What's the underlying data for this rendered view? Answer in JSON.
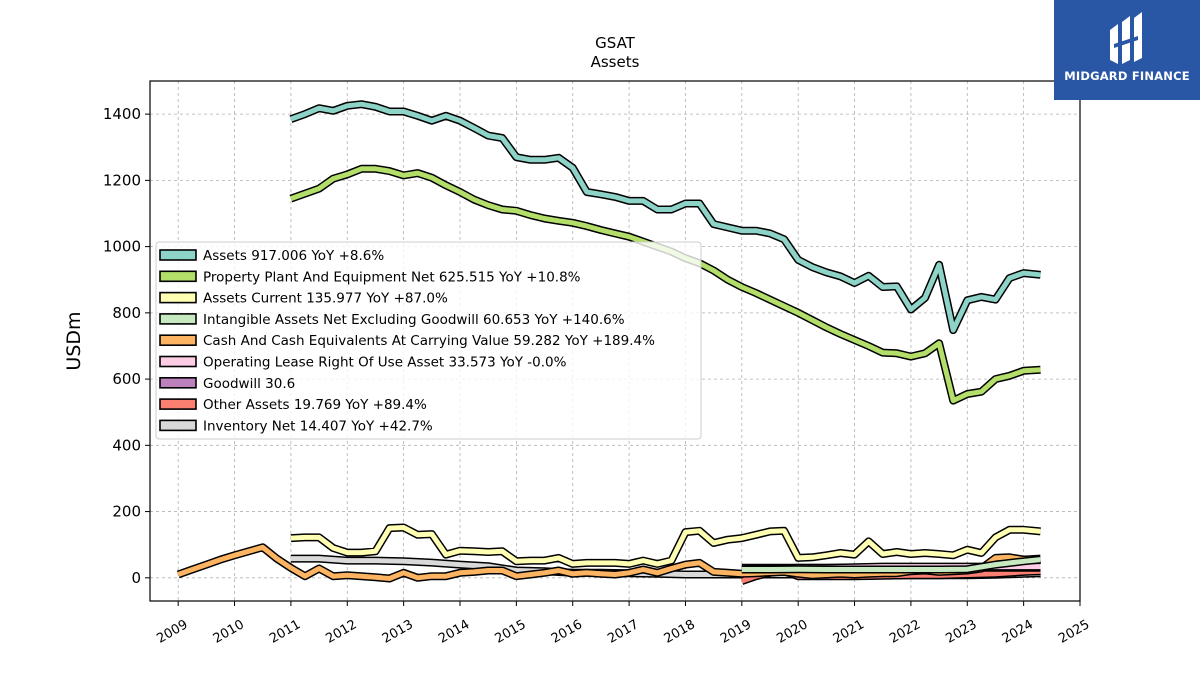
{
  "brand": {
    "name": "MIDGARD FINANCE",
    "logo_icon": "midgard-logo-icon"
  },
  "chart_data": {
    "type": "line",
    "title": "GSAT",
    "subtitle": "Assets",
    "xlabel": "",
    "ylabel": "USDm",
    "xlim": [
      2008.5,
      2025.0
    ],
    "ylim": [
      -70,
      1500
    ],
    "yticks": [
      0,
      200,
      400,
      600,
      800,
      1000,
      1200,
      1400
    ],
    "xticks": [
      2009,
      2010,
      2011,
      2012,
      2013,
      2014,
      2015,
      2016,
      2017,
      2018,
      2019,
      2020,
      2021,
      2022,
      2023,
      2024,
      2025
    ],
    "grid": true,
    "legend_position": "center-left",
    "series": [
      {
        "name": "Assets",
        "legend": "Assets  917.006 YoY +8.6%",
        "color": "#8dd3c7",
        "x": [
          2011.0,
          2011.25,
          2011.5,
          2011.75,
          2012.0,
          2012.25,
          2012.5,
          2012.75,
          2013.0,
          2013.25,
          2013.5,
          2013.75,
          2014.0,
          2014.25,
          2014.5,
          2014.75,
          2015.0,
          2015.25,
          2015.5,
          2015.75,
          2016.0,
          2016.25,
          2016.5,
          2016.75,
          2017.0,
          2017.25,
          2017.5,
          2017.75,
          2018.0,
          2018.25,
          2018.5,
          2018.75,
          2019.0,
          2019.25,
          2019.5,
          2019.75,
          2020.0,
          2020.25,
          2020.5,
          2020.75,
          2021.0,
          2021.25,
          2021.5,
          2021.75,
          2022.0,
          2022.25,
          2022.5,
          2022.75,
          2023.0,
          2023.25,
          2023.5,
          2023.75,
          2024.0,
          2024.3
        ],
        "values": [
          1385,
          1400,
          1418,
          1410,
          1425,
          1430,
          1422,
          1408,
          1408,
          1395,
          1380,
          1395,
          1380,
          1358,
          1335,
          1328,
          1270,
          1262,
          1262,
          1268,
          1238,
          1165,
          1158,
          1150,
          1138,
          1138,
          1112,
          1112,
          1130,
          1130,
          1068,
          1058,
          1048,
          1048,
          1040,
          1022,
          960,
          938,
          922,
          910,
          890,
          912,
          878,
          880,
          810,
          845,
          945,
          748,
          838,
          848,
          840,
          905,
          920,
          915
        ]
      },
      {
        "name": "Property Plant And Equipment Net",
        "legend": "Property Plant And Equipment Net  625.515 YoY +10.8%",
        "color": "#b3de69",
        "x": [
          2011.0,
          2011.25,
          2011.5,
          2011.75,
          2012.0,
          2012.25,
          2012.5,
          2012.75,
          2013.0,
          2013.25,
          2013.5,
          2013.75,
          2014.0,
          2014.25,
          2014.5,
          2014.75,
          2015.0,
          2015.25,
          2015.5,
          2015.75,
          2016.0,
          2016.25,
          2016.5,
          2016.75,
          2017.0,
          2017.25,
          2017.5,
          2017.75,
          2018.0,
          2018.25,
          2018.5,
          2018.75,
          2019.0,
          2019.25,
          2019.5,
          2019.75,
          2020.0,
          2020.25,
          2020.5,
          2020.75,
          2021.0,
          2021.25,
          2021.5,
          2021.75,
          2022.0,
          2022.25,
          2022.5,
          2022.75,
          2023.0,
          2023.25,
          2023.5,
          2023.75,
          2024.0,
          2024.3
        ],
        "values": [
          1145,
          1160,
          1175,
          1205,
          1218,
          1235,
          1235,
          1228,
          1215,
          1222,
          1208,
          1185,
          1165,
          1142,
          1125,
          1112,
          1108,
          1095,
          1085,
          1078,
          1072,
          1062,
          1050,
          1040,
          1030,
          1015,
          1000,
          985,
          965,
          950,
          928,
          900,
          878,
          860,
          840,
          820,
          800,
          778,
          756,
          736,
          718,
          700,
          680,
          678,
          668,
          678,
          708,
          535,
          555,
          562,
          600,
          610,
          625,
          628
        ]
      },
      {
        "name": "Assets Current",
        "legend": "Assets Current  135.977 YoY +87.0%",
        "color": "#ffffb3",
        "x": [
          2011.0,
          2011.25,
          2011.5,
          2011.75,
          2012.0,
          2012.25,
          2012.5,
          2012.75,
          2013.0,
          2013.25,
          2013.5,
          2013.75,
          2014.0,
          2014.25,
          2014.5,
          2014.75,
          2015.0,
          2015.25,
          2015.5,
          2015.75,
          2016.0,
          2016.25,
          2016.5,
          2016.75,
          2017.0,
          2017.25,
          2017.5,
          2017.75,
          2018.0,
          2018.25,
          2018.5,
          2018.75,
          2019.0,
          2019.25,
          2019.5,
          2019.75,
          2020.0,
          2020.25,
          2020.5,
          2020.75,
          2021.0,
          2021.25,
          2021.5,
          2021.75,
          2022.0,
          2022.25,
          2022.5,
          2022.75,
          2023.0,
          2023.25,
          2023.5,
          2023.75,
          2024.0,
          2024.3
        ],
        "values": [
          120,
          122,
          122,
          90,
          76,
          76,
          80,
          150,
          152,
          130,
          132,
          70,
          82,
          80,
          78,
          80,
          50,
          52,
          52,
          60,
          42,
          45,
          45,
          45,
          42,
          52,
          42,
          52,
          138,
          142,
          105,
          115,
          120,
          130,
          140,
          142,
          60,
          62,
          68,
          75,
          70,
          110,
          72,
          78,
          72,
          75,
          72,
          68,
          85,
          75,
          122,
          145,
          145,
          140
        ]
      },
      {
        "name": "Intangible Assets Net Excluding Goodwill",
        "legend": "Intangible Assets Net Excluding Goodwill  60.653 YoY +140.6%",
        "color": "#c7e9c0",
        "x": [
          2019.0,
          2019.5,
          2020.0,
          2020.5,
          2021.0,
          2021.5,
          2022.0,
          2022.5,
          2023.0,
          2023.5,
          2024.0,
          2024.3
        ],
        "values": [
          25,
          25,
          26,
          25,
          25,
          25,
          25,
          25,
          26,
          40,
          50,
          55
        ]
      },
      {
        "name": "Cash And Cash Equivalents At Carrying Value",
        "legend": "Cash And Cash Equivalents At Carrying Value  59.282 YoY +189.4%",
        "color": "#fdb462",
        "x": [
          2009.0,
          2009.25,
          2009.5,
          2009.75,
          2010.0,
          2010.25,
          2010.5,
          2010.75,
          2011.0,
          2011.25,
          2011.5,
          2011.75,
          2012.0,
          2012.25,
          2012.5,
          2012.75,
          2013.0,
          2013.25,
          2013.5,
          2013.75,
          2014.0,
          2014.25,
          2014.5,
          2014.75,
          2015.0,
          2015.25,
          2015.5,
          2015.75,
          2016.0,
          2016.25,
          2016.5,
          2016.75,
          2017.0,
          2017.25,
          2017.5,
          2017.75,
          2018.0,
          2018.25,
          2018.5,
          2018.75,
          2019.0,
          2019.25,
          2019.5,
          2019.75,
          2020.0,
          2020.25,
          2020.5,
          2020.75,
          2021.0,
          2021.25,
          2021.5,
          2021.75,
          2022.0,
          2022.25,
          2022.5,
          2022.75,
          2023.0,
          2023.25,
          2023.5,
          2023.75,
          2024.0,
          2024.3
        ],
        "values": [
          10,
          25,
          40,
          55,
          68,
          80,
          92,
          58,
          30,
          5,
          28,
          5,
          8,
          5,
          2,
          -2,
          15,
          0,
          5,
          5,
          15,
          18,
          22,
          22,
          5,
          10,
          15,
          22,
          12,
          15,
          12,
          10,
          15,
          25,
          15,
          28,
          40,
          45,
          18,
          15,
          12,
          14,
          16,
          18,
          12,
          8,
          10,
          12,
          10,
          12,
          14,
          14,
          20,
          22,
          18,
          20,
          22,
          28,
          60,
          62,
          55,
          58
        ]
      },
      {
        "name": "Operating Lease Right Of Use Asset",
        "legend": "Operating Lease Right Of Use Asset  33.573 YoY -0.0%",
        "color": "#fccde5",
        "x": [
          2019.0,
          2019.5,
          2020.0,
          2020.5,
          2021.0,
          2021.5,
          2022.0,
          2022.5,
          2023.0,
          2023.5,
          2024.0,
          2024.3
        ],
        "values": [
          26,
          28,
          30,
          30,
          32,
          34,
          34,
          34,
          34,
          34,
          34,
          34
        ]
      },
      {
        "name": "Goodwill",
        "legend": "Goodwill  30.6",
        "color": "#bc80bd",
        "x": [
          2019.0,
          2019.5,
          2020.0,
          2020.5,
          2021.0,
          2021.5,
          2022.0,
          2022.5,
          2023.0,
          2023.5,
          2024.0,
          2024.3
        ],
        "values": [
          30.6,
          30.6,
          30.6,
          30.6,
          30.6,
          30.6,
          30.6,
          30.6,
          30.6,
          30.6,
          30.6,
          30.6
        ]
      },
      {
        "name": "Other Assets",
        "legend": "Other Assets  19.769 YoY +89.4%",
        "color": "#fb8072",
        "x": [
          2019.0,
          2019.25,
          2019.5,
          2019.75,
          2020.0,
          2020.5,
          2021.0,
          2021.5,
          2022.0,
          2022.5,
          2023.0,
          2023.5,
          2024.0,
          2024.3
        ],
        "values": [
          -10,
          5,
          15,
          20,
          5,
          5,
          5,
          6,
          8,
          8,
          10,
          12,
          18,
          20
        ]
      },
      {
        "name": "Inventory Net",
        "legend": "Inventory Net  14.407 YoY +42.7%",
        "color": "#d9d9d9",
        "x": [
          2011.0,
          2011.5,
          2012.0,
          2012.5,
          2013.0,
          2013.5,
          2014.0,
          2014.5,
          2015.0,
          2015.5,
          2016.0,
          2016.5,
          2017.0,
          2017.5,
          2018.0,
          2018.5,
          2019.0,
          2019.5,
          2020.0,
          2020.5,
          2021.0,
          2021.5,
          2022.0,
          2022.5,
          2023.0,
          2023.5,
          2024.0,
          2024.3
        ],
        "values": [
          58,
          58,
          52,
          52,
          50,
          46,
          40,
          35,
          22,
          20,
          15,
          15,
          14,
          12,
          10,
          10,
          10,
          10,
          10,
          9,
          8,
          8,
          8,
          8,
          8,
          9,
          12,
          14
        ]
      }
    ]
  }
}
